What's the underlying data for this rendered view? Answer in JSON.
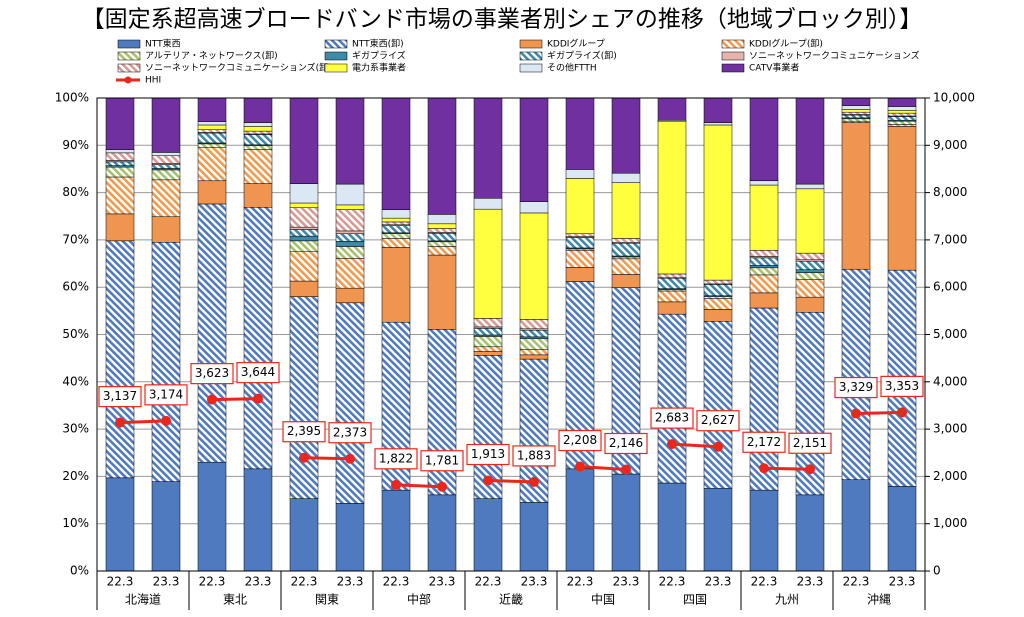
{
  "chart_data": {
    "type": "bar",
    "stacked": true,
    "title": "【固定系超高速ブロードバンド市場の事業者別シェアの推移（地域ブロック別）】",
    "categories": [
      "22.3",
      "23.3",
      "22.3",
      "23.3",
      "22.3",
      "23.3",
      "22.3",
      "23.3",
      "22.3",
      "23.3",
      "22.3",
      "23.3",
      "22.3",
      "23.3",
      "22.3",
      "23.3",
      "22.3",
      "23.3"
    ],
    "groups": [
      "北海道",
      "東北",
      "関東",
      "中部",
      "近畿",
      "中国",
      "四国",
      "九州",
      "沖縄"
    ],
    "ylim": [
      0,
      100
    ],
    "yticks": [
      {
        "value": 0,
        "label": "0%"
      },
      {
        "value": 10,
        "label": "10%"
      },
      {
        "value": 20,
        "label": "20%"
      },
      {
        "value": 30,
        "label": "30%"
      },
      {
        "value": 40,
        "label": "40%"
      },
      {
        "value": 50,
        "label": "50%"
      },
      {
        "value": 60,
        "label": "60%"
      },
      {
        "value": 70,
        "label": "70%"
      },
      {
        "value": 80,
        "label": "80%"
      },
      {
        "value": 90,
        "label": "90%"
      },
      {
        "value": 100,
        "label": "100%"
      }
    ],
    "y2lim": [
      0,
      10000
    ],
    "y2ticks": [
      0,
      {
        "value": 1000,
        "label": "1,000"
      },
      {
        "value": 2000,
        "label": "2,000"
      },
      {
        "value": 3000,
        "label": "3,000"
      },
      {
        "value": 4000,
        "label": "4,000"
      },
      {
        "value": 5000,
        "label": "5,000"
      },
      {
        "value": 6000,
        "label": "6,000"
      },
      {
        "value": 7000,
        "label": "7,000"
      },
      {
        "value": 8000,
        "label": "8,000"
      },
      {
        "value": 9000,
        "label": "9,000"
      },
      {
        "value": 10000,
        "label": "10,000"
      }
    ],
    "grid": true,
    "series": [
      {
        "name": "NTT東西",
        "color": "#4f7ac0",
        "hatch": false,
        "values": [
          19.7,
          18.9,
          23,
          21.6,
          15.3,
          14.3,
          17.1,
          16.1,
          15.3,
          14.5,
          21.6,
          20.5,
          18.6,
          17.5,
          17.1,
          16.1,
          19.3,
          17.9
        ]
      },
      {
        "name": "NTT東西(卸)",
        "color": "#4f7ac0",
        "hatch": true,
        "values": [
          50.1,
          50.6,
          54.6,
          55.3,
          42.7,
          42.4,
          35.5,
          35,
          30.3,
          30.3,
          39.6,
          39.4,
          35.7,
          35.3,
          38.5,
          38.6,
          44.5,
          45.7
        ]
      },
      {
        "name": "KDDIグループ",
        "color": "#ef9550",
        "hatch": false,
        "values": [
          5.7,
          5.4,
          4.9,
          5,
          3.3,
          3.1,
          15.8,
          15.7,
          0.8,
          0.9,
          3,
          2.8,
          2.6,
          2.5,
          3.2,
          3.2,
          31,
          30.4
        ]
      },
      {
        "name": "KDDIグループ(卸)",
        "color": "#f39a4c",
        "hatch": true,
        "values": [
          7.8,
          7.8,
          7,
          7.2,
          6.2,
          6.3,
          1.9,
          1.8,
          1,
          1.1,
          3.6,
          3.3,
          2.3,
          2.3,
          3.8,
          3.7,
          0.3,
          0.4
        ]
      },
      {
        "name": "アルテリア・ネットワークス(卸)",
        "color": "#a5c26a",
        "hatch": true,
        "values": [
          2.1,
          2.1,
          0.8,
          0.8,
          2.3,
          2.5,
          1,
          1,
          2.2,
          2.3,
          0.3,
          0.4,
          0.3,
          0.4,
          1.5,
          1.5,
          0.5,
          0.7
        ]
      },
      {
        "name": "ギガプライズ",
        "color": "#3e88a8",
        "hatch": false,
        "values": [
          0.3,
          0.3,
          0.2,
          0.2,
          1,
          1.1,
          0.2,
          0.2,
          0.3,
          0.4,
          0.2,
          0.2,
          0.2,
          0.2,
          0.5,
          0.6,
          0.2,
          0.2
        ]
      },
      {
        "name": "ギガプライズ(卸)",
        "color": "#3e88a8",
        "hatch": true,
        "values": [
          0.8,
          0.8,
          2.1,
          2.2,
          1.4,
          1.6,
          1.5,
          1.6,
          1.4,
          1.4,
          2.2,
          2.7,
          2.2,
          2.4,
          1.6,
          1.8,
          0.6,
          0.8
        ]
      },
      {
        "name": "ソニーネットワークコミュニケーションズ",
        "color": "#e6b3ad",
        "hatch": false,
        "values": [
          0.3,
          0.3,
          0.1,
          0.1,
          0.5,
          0.6,
          0.2,
          0.2,
          0.3,
          0.3,
          0.2,
          0.2,
          0.1,
          0.1,
          0.3,
          0.3,
          0.1,
          0.1
        ]
      },
      {
        "name": "ソニーネットワークコミュニケーションズ(卸)",
        "color": "#d89a94",
        "hatch": true,
        "values": [
          1.6,
          1.6,
          0.6,
          0.6,
          4.1,
          4.5,
          0.6,
          0.8,
          1.8,
          2,
          0.6,
          0.8,
          0.8,
          0.8,
          1.3,
          1.4,
          0.5,
          0.6
        ]
      },
      {
        "name": "電力系事業者",
        "color": "#ffff40",
        "hatch": false,
        "values": [
          0,
          0,
          1,
          1,
          1,
          1,
          0.8,
          1,
          23.1,
          22.5,
          11.7,
          11.8,
          32.3,
          32.8,
          13.8,
          13.6,
          0.6,
          0.6
        ]
      },
      {
        "name": "その他FTTH",
        "color": "#dbe8f3",
        "hatch": false,
        "values": [
          0.7,
          0.7,
          0.7,
          0.8,
          4.1,
          4.4,
          1.8,
          2,
          2.3,
          2.4,
          1.9,
          2,
          0.2,
          0.5,
          0.9,
          1,
          0.8,
          0.8
        ]
      },
      {
        "name": "CATV事業者",
        "color": "#70309f",
        "hatch": false,
        "values": [
          10.9,
          11.5,
          5,
          5.2,
          18.1,
          18.2,
          23.6,
          24.6,
          21.2,
          21.9,
          15.1,
          15.9,
          4.7,
          5.2,
          17.5,
          18.2,
          1.6,
          1.8
        ]
      },
      {
        "name": "HHI",
        "color": "#e8281e",
        "type": "line",
        "axis": "y2",
        "connect": "within_group",
        "values": [
          3137,
          3174,
          3623,
          3644,
          2395,
          2373,
          1822,
          1781,
          1913,
          1883,
          2208,
          2146,
          2683,
          2627,
          2172,
          2151,
          3329,
          3353
        ],
        "value_labels": [
          "3,137",
          "3,174",
          "3,623",
          "3,644",
          "2,395",
          "2,373",
          "1,822",
          "1,781",
          "1,913",
          "1,883",
          "2,208",
          "2,146",
          "2,683",
          "2,627",
          "2,172",
          "2,151",
          "3,329",
          "3,353"
        ]
      }
    ]
  }
}
